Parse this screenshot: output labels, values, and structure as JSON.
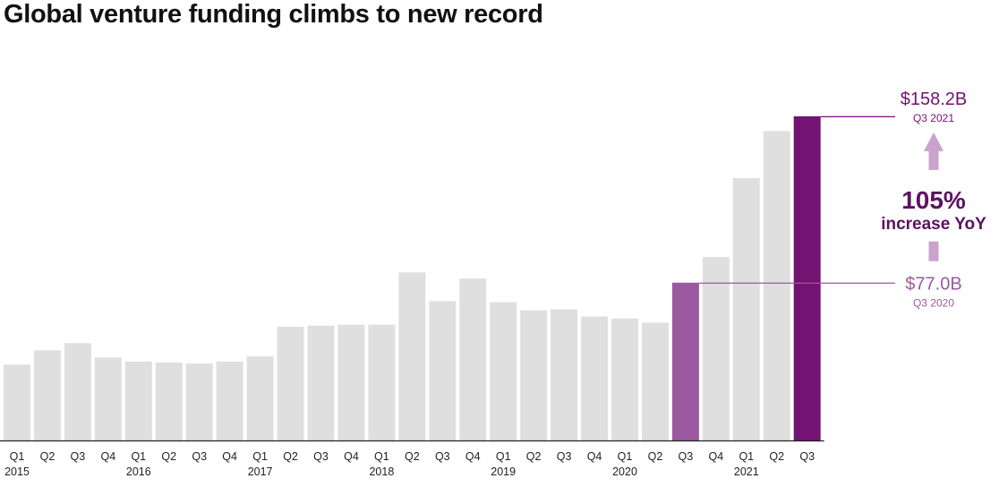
{
  "colors": {
    "bar_default": "#e0dfe0",
    "bar_prior": "#9b5a9f",
    "bar_current": "#731372",
    "arrow": "#c9a3c9",
    "text_dark": "#5c1260",
    "text_mid": "#9b5a9f",
    "axis": "#222222"
  },
  "chart_data": {
    "type": "bar",
    "title": "Global venture funding climbs to new record",
    "xlabel": "",
    "ylabel": "",
    "ylim": [
      0,
      170
    ],
    "grid": false,
    "categories": [
      "Q1",
      "Q2",
      "Q3",
      "Q4",
      "Q1",
      "Q2",
      "Q3",
      "Q4",
      "Q1",
      "Q2",
      "Q3",
      "Q4",
      "Q1",
      "Q2",
      "Q3",
      "Q4",
      "Q1",
      "Q2",
      "Q3",
      "Q4",
      "Q1",
      "Q2",
      "Q3",
      "Q4",
      "Q1",
      "Q2",
      "Q3"
    ],
    "years": [
      "2015",
      "",
      "",
      "",
      "2016",
      "",
      "",
      "",
      "2017",
      "",
      "",
      "",
      "2018",
      "",
      "",
      "",
      "2019",
      "",
      "",
      "",
      "2020",
      "",
      "",
      "",
      "2021",
      "",
      ""
    ],
    "values": [
      37.0,
      44.0,
      47.5,
      40.5,
      38.5,
      38.0,
      37.5,
      38.5,
      41.0,
      55.5,
      56.0,
      56.5,
      56.5,
      82.0,
      68.0,
      79.0,
      67.5,
      63.5,
      64.0,
      60.5,
      59.5,
      57.5,
      77.0,
      89.5,
      128.0,
      151.0,
      158.2
    ],
    "highlight": {
      "prior_index": 22,
      "current_index": 26
    },
    "annotations": {
      "current": {
        "value": "$158.2B",
        "period": "Q3 2021"
      },
      "prior": {
        "value": "$77.0B",
        "period": "Q3 2020"
      },
      "growth": {
        "value": "105%",
        "label": "increase YoY"
      }
    }
  }
}
